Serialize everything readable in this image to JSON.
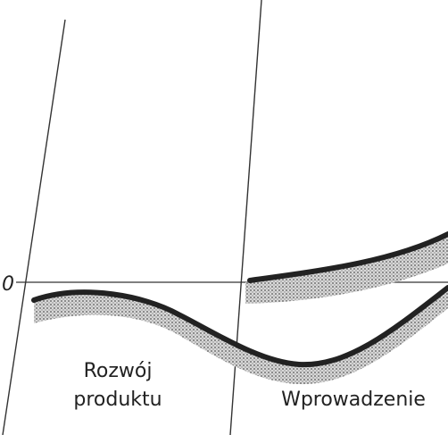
{
  "zero_label": "0",
  "phases": [
    {
      "lines": [
        "Rozwój",
        "produktu"
      ]
    },
    {
      "lines": [
        "Wprowadzenie"
      ]
    }
  ]
}
